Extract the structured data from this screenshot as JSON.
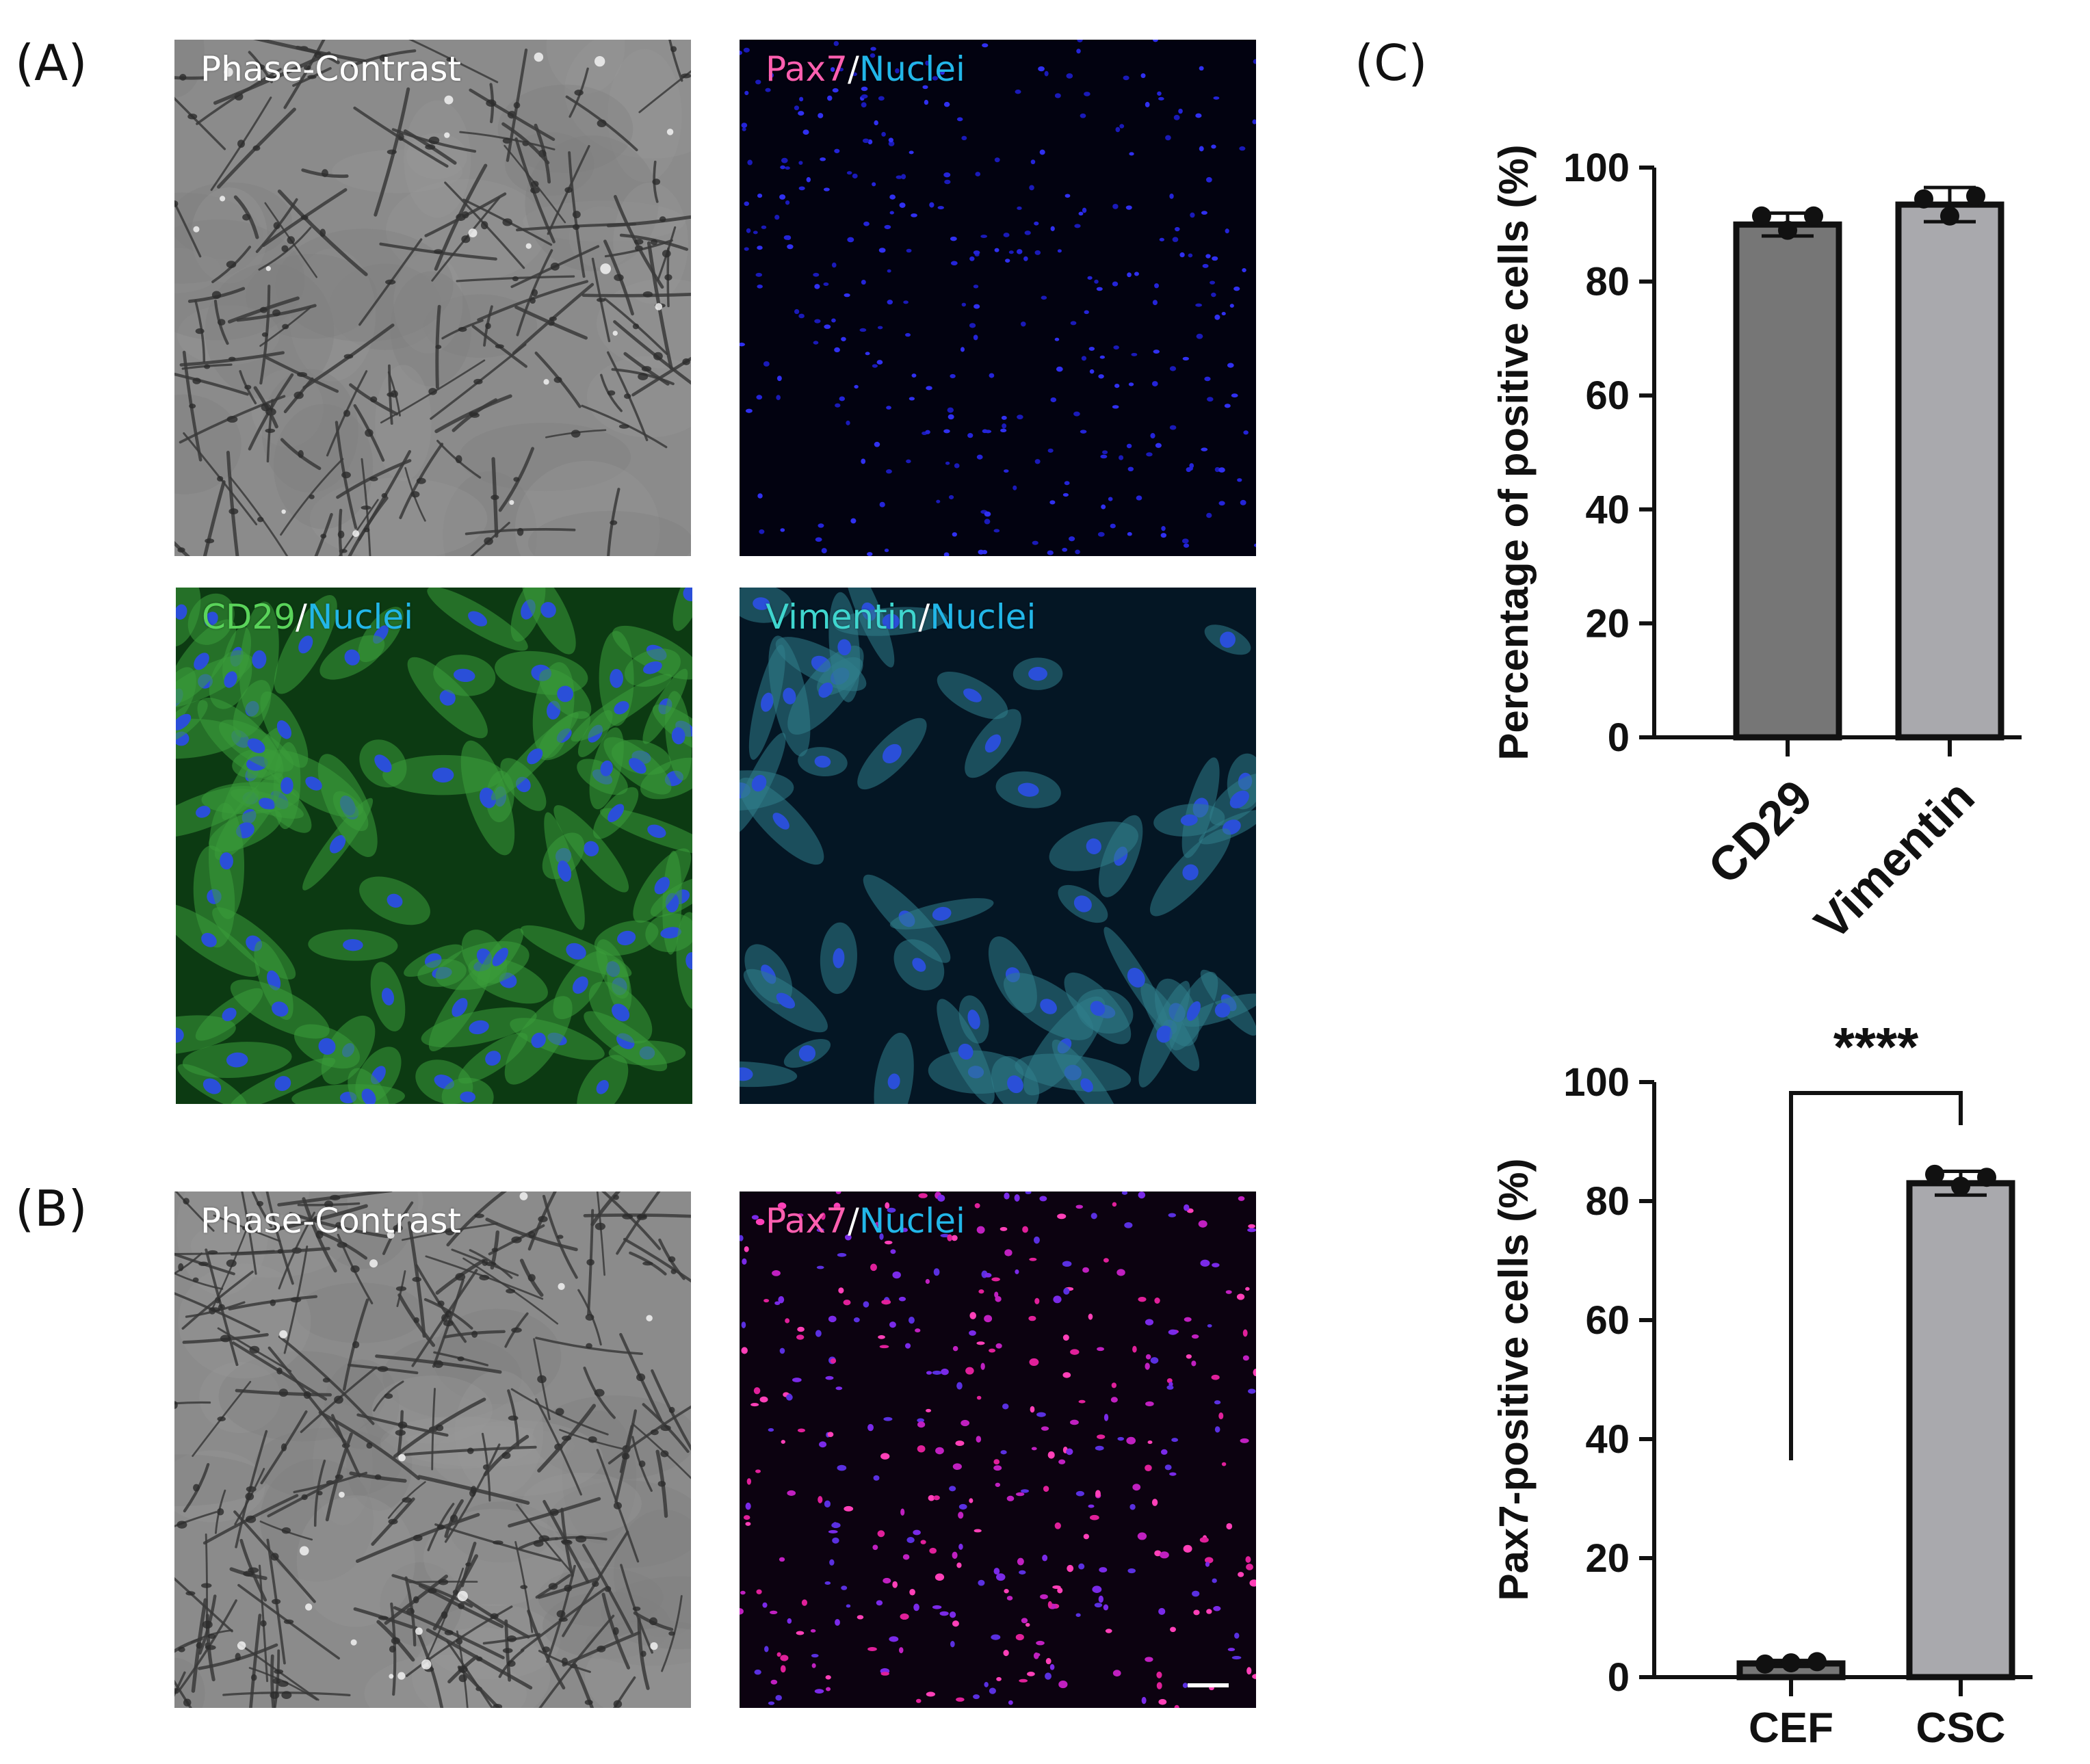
{
  "panels": {
    "A": "(A)",
    "B": "(B)",
    "C": "(C)"
  },
  "images": {
    "a_phase": {
      "label": [
        "Phase-Contrast"
      ]
    },
    "a_pax7": {
      "label": [
        "Pax7",
        "/",
        "Nuclei"
      ]
    },
    "a_cd29": {
      "label": [
        "CD29",
        "/",
        "Nuclei"
      ]
    },
    "a_vimentin": {
      "label": [
        "Vimentin",
        "/",
        "Nuclei"
      ]
    },
    "b_phase": {
      "label": [
        "Phase-Contrast"
      ]
    },
    "b_pax7": {
      "label": [
        "Pax7",
        "/",
        "Nuclei"
      ]
    }
  },
  "colors": {
    "pax7": "#ff5fb0",
    "nuclei": "#22b6e8",
    "cd29": "#5ad45a",
    "vimentin": "#3fd6cf",
    "slash": "#ffffff",
    "phase_label": "#ffffff",
    "bar_dark": "#767676",
    "bar_light": "#a9a9ad"
  },
  "chart_data": [
    {
      "type": "bar",
      "categories": [
        "CD29",
        "Vimentin"
      ],
      "values": [
        90,
        93.5
      ],
      "error": [
        2,
        3
      ],
      "points": [
        [
          91.5,
          89,
          91.5
        ],
        [
          94.5,
          91.5,
          95
        ]
      ],
      "ylabel": "Percentage of positive cells  (%)",
      "ylim": [
        0,
        100
      ],
      "yticks": [
        "0",
        "20",
        "40",
        "60",
        "80",
        "100"
      ],
      "grid": false
    },
    {
      "type": "bar",
      "categories": [
        "CEF",
        "CSC"
      ],
      "values": [
        2.3,
        83
      ],
      "error": [
        0.5,
        2
      ],
      "points": [
        [
          2.2,
          2.4,
          2.6
        ],
        [
          84.5,
          82.5,
          84
        ]
      ],
      "ylabel": "Pax7-positive cells (%)",
      "ylim": [
        0,
        100
      ],
      "yticks": [
        "0",
        "20",
        "40",
        "60",
        "80",
        "100"
      ],
      "significance": "****",
      "grid": false
    }
  ]
}
